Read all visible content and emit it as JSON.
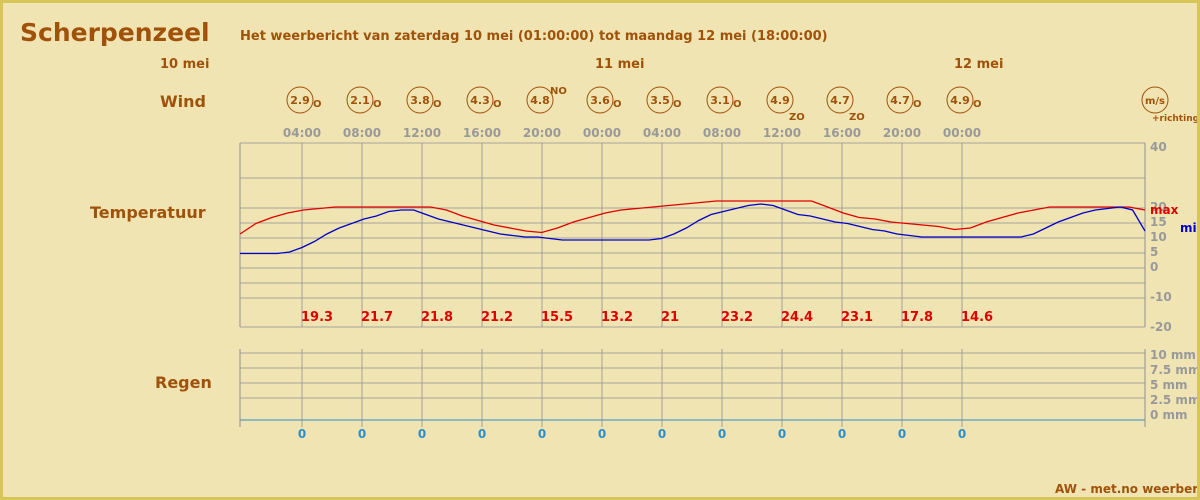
{
  "header": {
    "location": "Scherpenzeel",
    "subtitle": "Het weerbericht van zaterdag 10 mei (01:00:00) tot maandag 12 mei (18:00:00)",
    "footer": "AW - met.no weerbericht"
  },
  "day_labels": [
    "10 mei",
    "11 mei",
    "12 mei"
  ],
  "row_labels": {
    "wind": "Wind",
    "temperature": "Temperatuur",
    "rain": "Regen"
  },
  "colors": {
    "max": "#e00000",
    "min": "#0000cc",
    "accent": "#a0520a",
    "rain": "#2a8fd0",
    "grid": "#909090",
    "bg": "#f0e4b2"
  },
  "chart_data": {
    "type": "line",
    "x": [
      "04:00",
      "08:00",
      "12:00",
      "16:00",
      "20:00",
      "00:00",
      "04:00",
      "08:00",
      "12:00",
      "16:00",
      "20:00",
      "00:00"
    ],
    "wind": {
      "unit_label": "m/s",
      "direction_label": "+richting",
      "speeds": [
        "2.9",
        "2.1",
        "3.8",
        "4.3",
        "4.8",
        "3.6",
        "3.5",
        "3.1",
        "4.9",
        "4.7",
        "4.7",
        "4.9"
      ],
      "directions": [
        "O",
        "O",
        "O",
        "O",
        "NO",
        "O",
        "O",
        "O",
        "ZO",
        "ZO",
        "O",
        "O"
      ]
    },
    "temperature": {
      "ylim": [
        -20,
        40
      ],
      "y_ticks": [
        "40",
        "20",
        "15",
        "10",
        "5",
        "0",
        "-10",
        "-20"
      ],
      "series": [
        {
          "name": "max",
          "values": [
            11,
            14.5,
            16.5,
            18,
            19,
            19.5,
            20,
            20,
            20,
            20,
            20,
            20,
            20,
            19,
            17,
            15.5,
            14,
            13,
            12,
            11.5,
            13,
            15,
            16.5,
            18,
            19,
            19.5,
            20,
            20.5,
            21,
            21.5,
            22,
            22,
            22,
            22,
            22,
            22,
            22,
            20,
            18,
            16.5,
            16,
            15,
            14.5,
            14,
            13.5,
            12.5,
            13,
            15,
            16.5,
            18,
            19,
            20,
            20,
            20,
            20,
            20,
            20,
            19
          ]
        },
        {
          "name": "min",
          "values": [
            4.5,
            4.5,
            4.5,
            4.5,
            5,
            6.5,
            8.5,
            11,
            13,
            14.5,
            16,
            17,
            18.5,
            19,
            19,
            17.5,
            16,
            15,
            14,
            13,
            12,
            11,
            10.5,
            10,
            10,
            9.5,
            9,
            9,
            9,
            9,
            9,
            9,
            9,
            9,
            9.5,
            11,
            13,
            15.5,
            17.5,
            18.5,
            19.5,
            20.5,
            21,
            20.5,
            19,
            17.5,
            17,
            16,
            15,
            14.5,
            13.5,
            12.5,
            12,
            11,
            10.5,
            10,
            10,
            10,
            10,
            10,
            10,
            10,
            10,
            10,
            11,
            13,
            15,
            16.5,
            18,
            19,
            19.5,
            20,
            19,
            12
          ]
        }
      ],
      "max_labels": [
        "19.3",
        "21.7",
        "21.8",
        "21.2",
        "15.5",
        "13.2",
        "21",
        "23.2",
        "24.4",
        "23.1",
        "17.8",
        "14.6"
      ],
      "legend": [
        "max",
        "min"
      ]
    },
    "rain": {
      "y_ticks": [
        "10 mm",
        "7.5 mm",
        "5 mm",
        "2.5 mm",
        "0 mm"
      ],
      "values": [
        0,
        0,
        0,
        0,
        0,
        0,
        0,
        0,
        0,
        0,
        0,
        0
      ],
      "labels": [
        "0",
        "0",
        "0",
        "0",
        "0",
        "0",
        "0",
        "0",
        "0",
        "0",
        "0",
        "0"
      ]
    }
  }
}
